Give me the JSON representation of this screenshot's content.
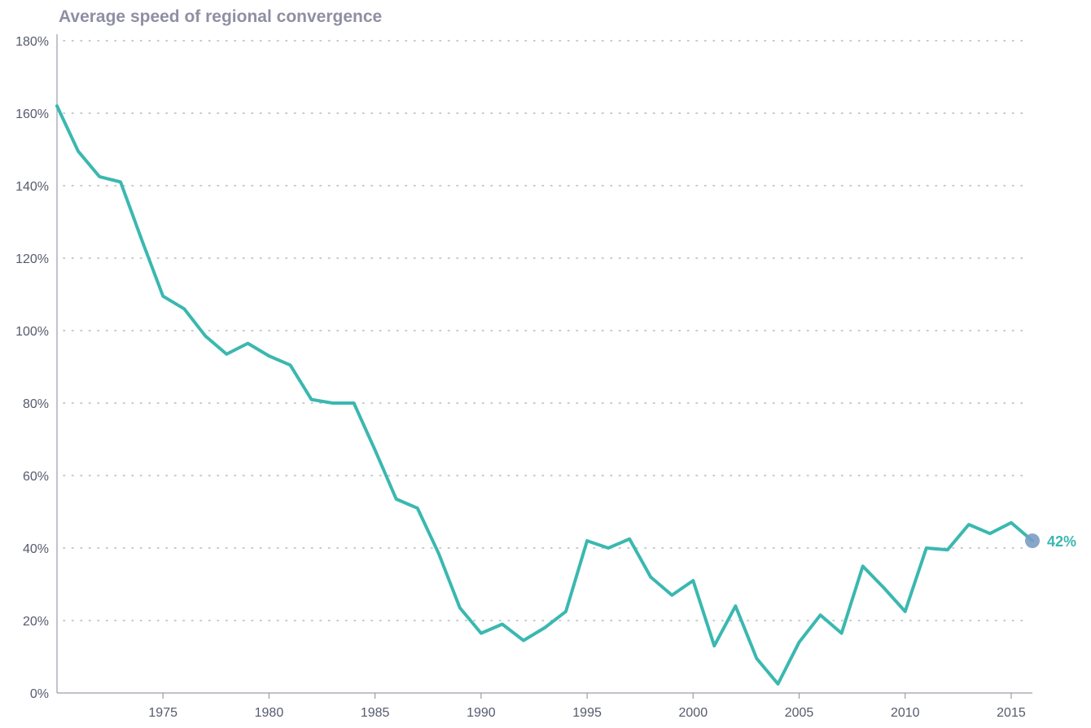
{
  "chart_data": {
    "type": "line",
    "title": "Average speed of regional convergence",
    "xlabel": "",
    "ylabel": "",
    "x_range": [
      1970,
      2016
    ],
    "ylim": [
      0,
      180
    ],
    "y_ticks": [
      0,
      20,
      40,
      60,
      80,
      100,
      120,
      140,
      160,
      180
    ],
    "y_tick_labels": [
      "0%",
      "20%",
      "40%",
      "60%",
      "80%",
      "100%",
      "120%",
      "140%",
      "160%",
      "180%"
    ],
    "x_ticks": [
      1975,
      1980,
      1985,
      1990,
      1995,
      2000,
      2005,
      2010,
      2015
    ],
    "x_tick_labels": [
      "1975",
      "1980",
      "1985",
      "1990",
      "1995",
      "2000",
      "2005",
      "2010",
      "2015"
    ],
    "grid": "horizontal dotted",
    "legend": "none",
    "colors": {
      "line": "#3ab8b0",
      "end_marker": "#7a9cc4",
      "grid": "#b5b8c4",
      "axis": "#9a9cab",
      "title": "#8f8fa3",
      "end_label": "#3ab8b0"
    },
    "end_label": "42%",
    "series": [
      {
        "x": [
          1970,
          1971,
          1972,
          1973,
          1974,
          1975,
          1976,
          1977,
          1978,
          1979,
          1980,
          1981,
          1982,
          1983,
          1984,
          1985,
          1986,
          1987,
          1988,
          1989,
          1990,
          1991,
          1992,
          1993,
          1994,
          1995,
          1996,
          1997,
          1998,
          1999,
          2000,
          2001,
          2002,
          2003,
          2004,
          2005,
          2006,
          2007,
          2008,
          2009,
          2010,
          2011,
          2012,
          2013,
          2014,
          2015,
          2016
        ],
        "values": [
          162,
          149.5,
          142.5,
          141,
          125,
          109.5,
          106,
          98.5,
          93.5,
          96.5,
          93,
          90.5,
          81,
          80,
          80,
          67,
          53.5,
          51,
          38.5,
          23.5,
          16.5,
          19,
          14.5,
          18,
          22.5,
          42,
          40,
          42.5,
          32,
          27,
          31,
          13,
          24,
          9.5,
          2.5,
          14,
          21.5,
          16.5,
          35,
          29,
          22.5,
          40,
          39.5,
          46.5,
          44,
          47,
          42
        ]
      }
    ]
  }
}
